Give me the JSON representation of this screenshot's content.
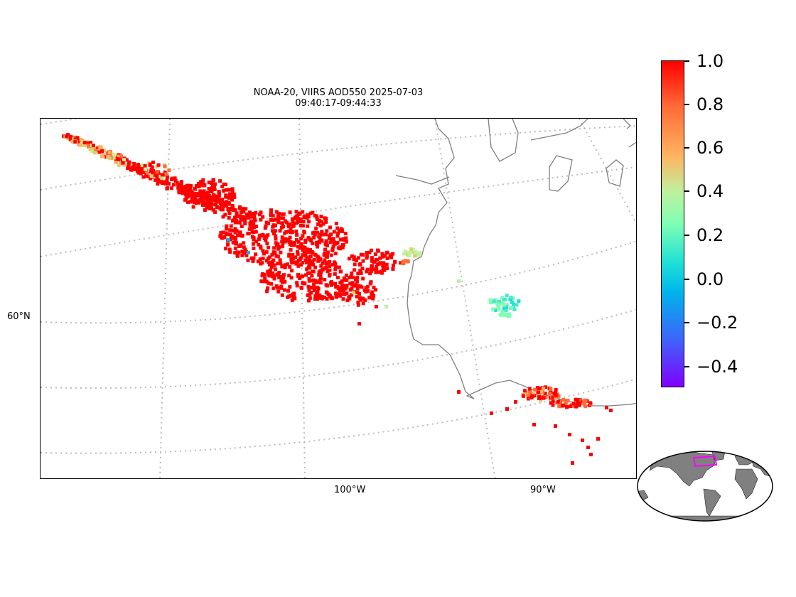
{
  "title_line1": "NOAA-20, VIIRS AOD550 2025-07-03",
  "title_line2": "09:40:17-09:44:33",
  "lat_labels": [
    "60°N"
  ],
  "lon_labels": [
    "100°W",
    "90°W"
  ],
  "colorbar": {
    "colormap": "rainbow",
    "min": -0.5,
    "max": 1.0,
    "tick_labels": [
      "1.0",
      "0.8",
      "0.6",
      "0.4",
      "0.2",
      "0.0",
      "−0.2",
      "−0.4"
    ]
  },
  "colors": {
    "coastline": "#808080",
    "gridline": "#bbbbbb",
    "inset_land": "#808080",
    "inset_box": "#ff00ff",
    "high_aod": "#ff0000"
  }
}
